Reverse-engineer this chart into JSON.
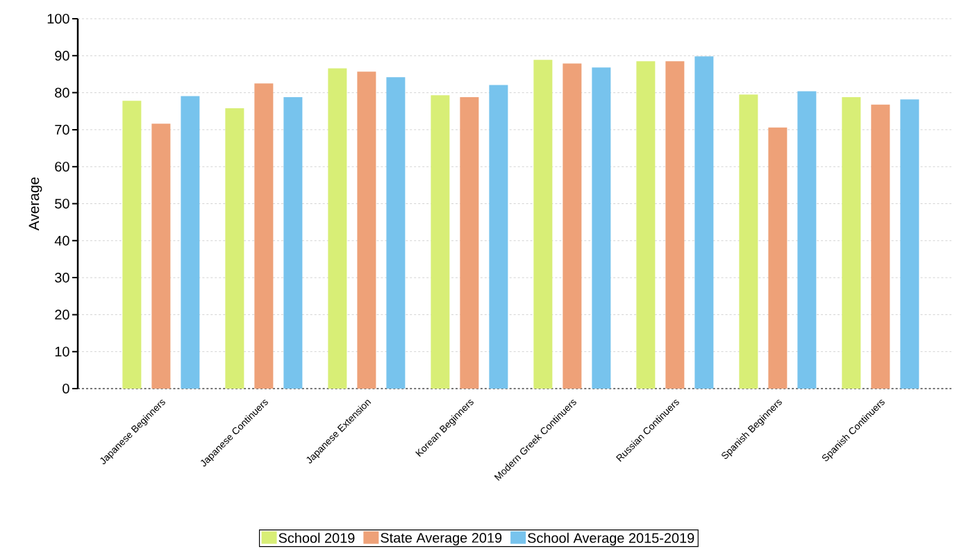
{
  "chart_data": {
    "type": "bar",
    "ylabel": "Average",
    "categories": [
      "Japanese Beginners",
      "Japanese Continuers",
      "Japanese Extension",
      "Korean Beginners",
      "Modern Greek Continuers",
      "Russian Continuers",
      "Spanish Beginners",
      "Spanish Continuers"
    ],
    "series": [
      {
        "name": "School 2019",
        "color": "#d8ee76",
        "values": [
          77.8,
          75.8,
          86.6,
          79.3,
          88.9,
          88.5,
          79.5,
          78.8
        ]
      },
      {
        "name": "State Average 2019",
        "color": "#eea178",
        "values": [
          71.6,
          82.5,
          85.7,
          78.8,
          87.9,
          88.5,
          70.6,
          76.8
        ]
      },
      {
        "name": "School Average 2015-2019",
        "color": "#77c3ed",
        "values": [
          79.1,
          78.8,
          84.2,
          82.1,
          86.8,
          89.8,
          80.4,
          78.2
        ]
      }
    ],
    "ylim": [
      0,
      100
    ],
    "yticks": [
      0,
      10,
      20,
      30,
      40,
      50,
      60,
      70,
      80,
      90,
      100
    ],
    "grid": "y",
    "legend": "bottom"
  }
}
